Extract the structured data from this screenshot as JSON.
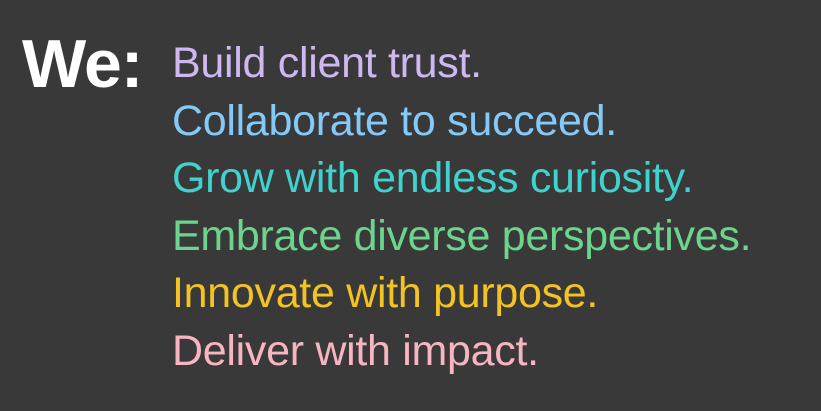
{
  "lead": {
    "text": "We:",
    "color": "#ffffff"
  },
  "values": [
    {
      "text": "Build client trust.",
      "color": "#cdb8f2"
    },
    {
      "text": "Collaborate to succeed.",
      "color": "#84c9f7"
    },
    {
      "text": "Grow with endless curiosity.",
      "color": "#40d2cc"
    },
    {
      "text": "Embrace diverse perspectives.",
      "color": "#6cd48c"
    },
    {
      "text": "Innovate with purpose.",
      "color": "#f3c324"
    },
    {
      "text": "Deliver with impact.",
      "color": "#f7b5c0"
    }
  ]
}
